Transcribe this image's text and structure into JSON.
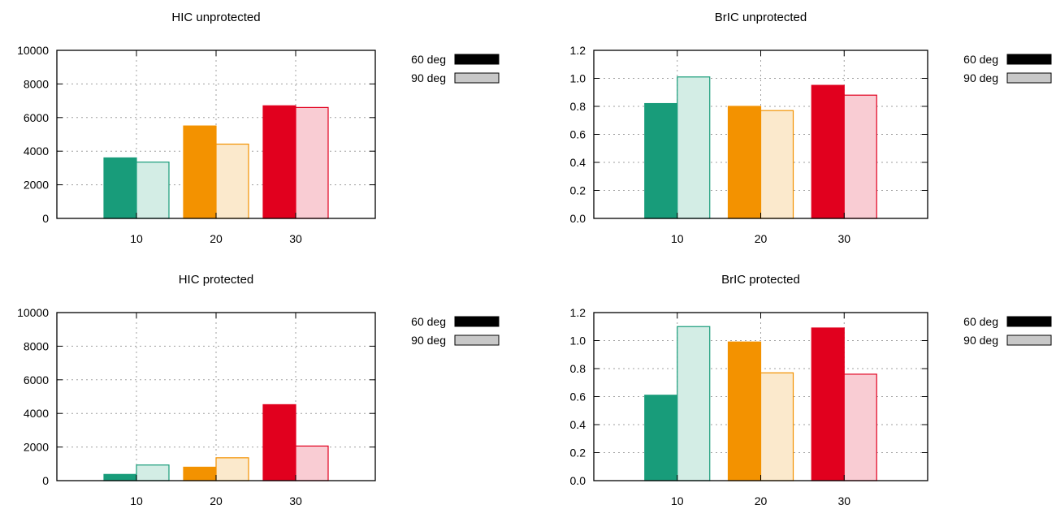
{
  "colors": {
    "green": "#189c7a",
    "green_light": "#d3ede5",
    "orange": "#f39200",
    "orange_light": "#fbe9cc",
    "red": "#e1001e",
    "red_light": "#f9ccd3",
    "legend_solid": "#000000",
    "legend_light": "#c8c8c8",
    "grid": "#a0a0a0"
  },
  "chart_data": [
    {
      "type": "bar",
      "title": "HIC unprotected",
      "categories": [
        "10",
        "20",
        "30"
      ],
      "series": [
        {
          "name": "60 deg",
          "values": [
            3600,
            5500,
            6700
          ]
        },
        {
          "name": "90 deg",
          "values": [
            3350,
            4420,
            6600
          ]
        }
      ],
      "ylim": [
        0,
        10000
      ],
      "yticks": [
        "0",
        "2000",
        "4000",
        "6000",
        "8000",
        "10000"
      ],
      "grid": true,
      "legend": "right"
    },
    {
      "type": "bar",
      "title": "BrIC unprotected",
      "categories": [
        "10",
        "20",
        "30"
      ],
      "series": [
        {
          "name": "60 deg",
          "values": [
            0.82,
            0.8,
            0.95
          ]
        },
        {
          "name": "90 deg",
          "values": [
            1.01,
            0.77,
            0.88
          ]
        }
      ],
      "ylim": [
        0,
        1.2
      ],
      "yticks": [
        "0.0",
        "0.2",
        "0.4",
        "0.6",
        "0.8",
        "1.0",
        "1.2"
      ],
      "grid": true,
      "legend": "right"
    },
    {
      "type": "bar",
      "title": "HIC protected",
      "categories": [
        "10",
        "20",
        "30"
      ],
      "series": [
        {
          "name": "60 deg",
          "values": [
            370,
            800,
            4520
          ]
        },
        {
          "name": "90 deg",
          "values": [
            930,
            1360,
            2060
          ]
        }
      ],
      "ylim": [
        0,
        10000
      ],
      "yticks": [
        "0",
        "2000",
        "4000",
        "6000",
        "8000",
        "10000"
      ],
      "grid": true,
      "legend": "right"
    },
    {
      "type": "bar",
      "title": "BrIC protected",
      "categories": [
        "10",
        "20",
        "30"
      ],
      "series": [
        {
          "name": "60 deg",
          "values": [
            0.61,
            0.99,
            1.09
          ]
        },
        {
          "name": "90 deg",
          "values": [
            1.1,
            0.77,
            0.76
          ]
        }
      ],
      "ylim": [
        0,
        1.2
      ],
      "yticks": [
        "0.0",
        "0.2",
        "0.4",
        "0.6",
        "0.8",
        "1.0",
        "1.2"
      ],
      "grid": true,
      "legend": "right"
    }
  ]
}
